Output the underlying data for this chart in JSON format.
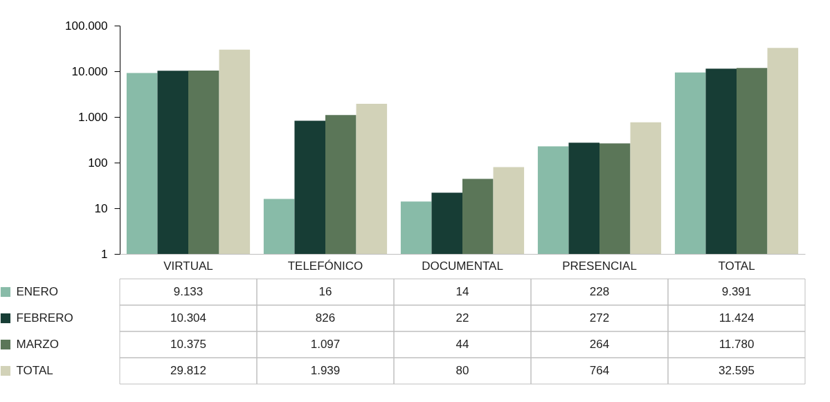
{
  "chart_data": {
    "type": "bar",
    "log": true,
    "categories": [
      "VIRTUAL",
      "TELEFÓNICO",
      "DOCUMENTAL",
      "PRESENCIAL",
      "TOTAL"
    ],
    "series": [
      {
        "name": "ENERO",
        "color": "#88bba8",
        "values": [
          9133,
          16,
          14,
          228,
          9391
        ],
        "value_labels": [
          "9.133",
          "16",
          "14",
          "228",
          "9.391"
        ]
      },
      {
        "name": "FEBRERO",
        "color": "#173d35",
        "values": [
          10304,
          826,
          22,
          272,
          11424
        ],
        "value_labels": [
          "10.304",
          "826",
          "22",
          "272",
          "11.424"
        ]
      },
      {
        "name": "MARZO",
        "color": "#5b7658",
        "values": [
          10375,
          1097,
          44,
          264,
          11780
        ],
        "value_labels": [
          "10.375",
          "1.097",
          "44",
          "264",
          "11.780"
        ]
      },
      {
        "name": "TOTAL",
        "color": "#d2d2b8",
        "values": [
          29812,
          1939,
          80,
          764,
          32595
        ],
        "value_labels": [
          "29.812",
          "1.939",
          "80",
          "764",
          "32.595"
        ]
      }
    ],
    "ylim": [
      1,
      100000
    ],
    "yticks": [
      1,
      10,
      100,
      {
        "value": 1000,
        "label": "1.000"
      },
      {
        "value": 10000,
        "label": "10.000"
      },
      {
        "value": 100000,
        "label": "100.000"
      }
    ],
    "grid": false,
    "legend": "bottom"
  }
}
